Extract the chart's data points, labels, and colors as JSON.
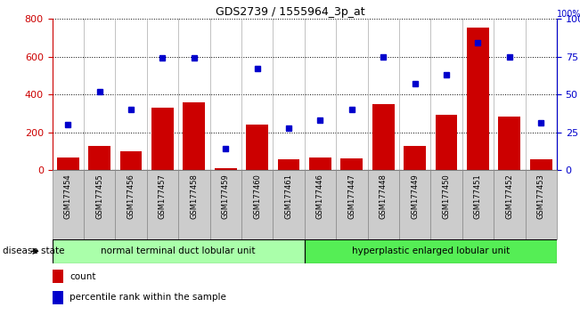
{
  "title": "GDS2739 / 1555964_3p_at",
  "samples": [
    "GSM177454",
    "GSM177455",
    "GSM177456",
    "GSM177457",
    "GSM177458",
    "GSM177459",
    "GSM177460",
    "GSM177461",
    "GSM177446",
    "GSM177447",
    "GSM177448",
    "GSM177449",
    "GSM177450",
    "GSM177451",
    "GSM177452",
    "GSM177453"
  ],
  "counts": [
    65,
    130,
    100,
    330,
    360,
    10,
    240,
    55,
    65,
    60,
    350,
    130,
    295,
    755,
    285,
    55
  ],
  "percentiles": [
    30,
    52,
    40,
    74,
    74,
    14,
    67,
    28,
    33,
    40,
    75,
    57,
    63,
    84,
    75,
    31
  ],
  "group1_label": "normal terminal duct lobular unit",
  "group2_label": "hyperplastic enlarged lobular unit",
  "group1_count": 8,
  "group2_count": 8,
  "ylim_left": [
    0,
    800
  ],
  "ylim_right": [
    0,
    100
  ],
  "yticks_left": [
    0,
    200,
    400,
    600,
    800
  ],
  "yticks_right": [
    0,
    25,
    50,
    75,
    100
  ],
  "bar_color": "#cc0000",
  "dot_color": "#0000cc",
  "group1_color": "#aaffaa",
  "group2_color": "#55ee55",
  "grid_color": "#000000",
  "xticklabel_bg": "#cccccc",
  "ylabel_left_color": "#cc0000",
  "ylabel_right_color": "#0000cc"
}
